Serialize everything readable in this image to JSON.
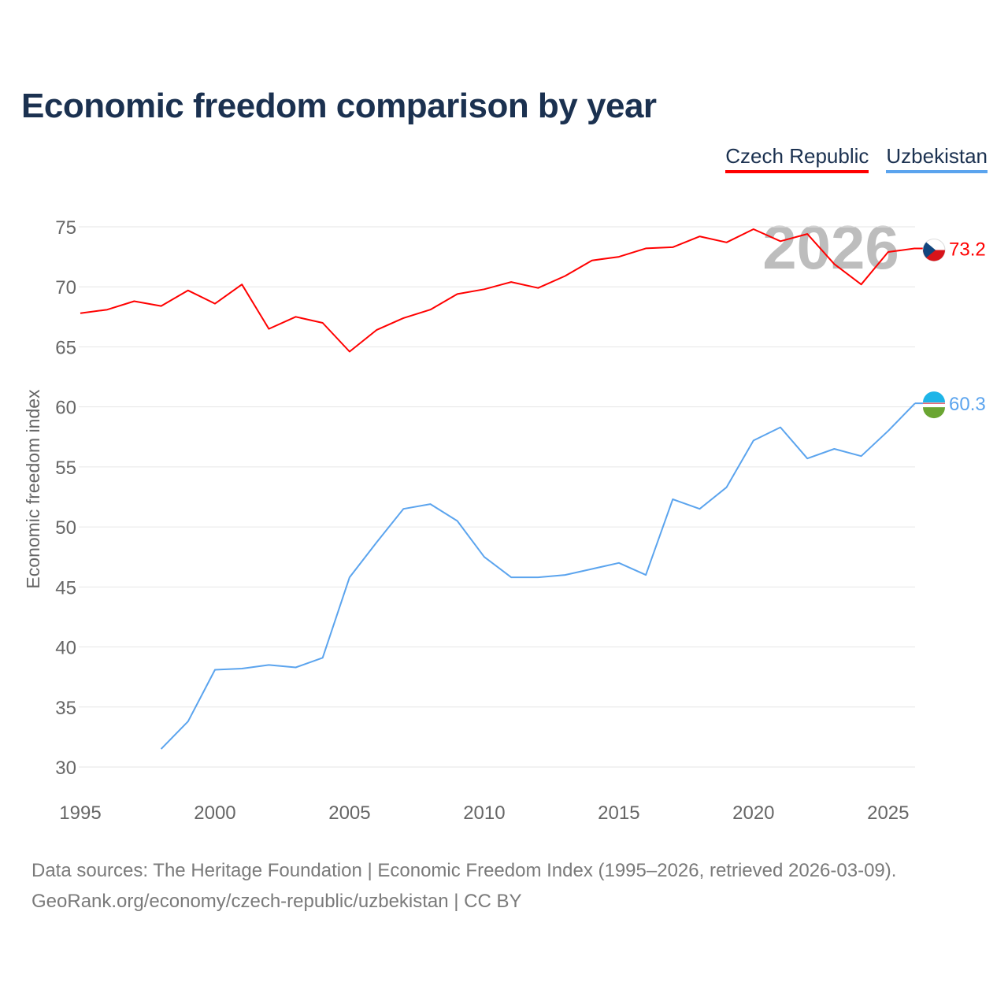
{
  "chart_data": {
    "type": "line",
    "title": "Economic freedom comparison by year",
    "xlabel": "",
    "ylabel": "Economic freedom index",
    "xlim": [
      1995,
      2026
    ],
    "ylim": [
      30,
      75
    ],
    "x_ticks": [
      1995,
      2000,
      2005,
      2010,
      2015,
      2020,
      2025
    ],
    "y_ticks": [
      30,
      35,
      40,
      45,
      50,
      55,
      60,
      65,
      70,
      75
    ],
    "grid": true,
    "legend_position": "top-right",
    "current_year_label": "2026",
    "series": [
      {
        "name": "Czech Republic",
        "color": "#ff0000",
        "end_label": "73.2",
        "x": [
          1995,
          1996,
          1997,
          1998,
          1999,
          2000,
          2001,
          2002,
          2003,
          2004,
          2005,
          2006,
          2007,
          2008,
          2009,
          2010,
          2011,
          2012,
          2013,
          2014,
          2015,
          2016,
          2017,
          2018,
          2019,
          2020,
          2021,
          2022,
          2023,
          2024,
          2025,
          2026
        ],
        "values": [
          67.8,
          68.1,
          68.8,
          68.4,
          69.7,
          68.6,
          70.2,
          66.5,
          67.5,
          67.0,
          64.6,
          66.4,
          67.4,
          68.1,
          69.4,
          69.8,
          70.4,
          69.9,
          70.9,
          72.2,
          72.5,
          73.2,
          73.3,
          74.2,
          73.7,
          74.8,
          73.8,
          74.4,
          71.9,
          70.2,
          72.9,
          73.2
        ]
      },
      {
        "name": "Uzbekistan",
        "color": "#5ba4ee",
        "end_label": "60.3",
        "x": [
          1998,
          1999,
          2000,
          2001,
          2002,
          2003,
          2004,
          2005,
          2006,
          2007,
          2008,
          2009,
          2010,
          2011,
          2012,
          2013,
          2014,
          2015,
          2016,
          2017,
          2018,
          2019,
          2020,
          2021,
          2022,
          2023,
          2024,
          2025,
          2026
        ],
        "values": [
          31.5,
          33.8,
          38.1,
          38.2,
          38.5,
          38.3,
          39.1,
          45.8,
          48.7,
          51.5,
          51.9,
          50.5,
          47.5,
          45.8,
          45.8,
          46.0,
          46.5,
          47.0,
          46.0,
          52.3,
          51.5,
          53.3,
          57.2,
          58.3,
          55.7,
          56.5,
          55.9,
          58.0,
          60.3
        ]
      }
    ]
  },
  "footer": {
    "line1": "Data sources: The Heritage Foundation | Economic Freedom Index (1995–2026, retrieved 2026-03-09).",
    "line2": "GeoRank.org/economy/czech-republic/uzbekistan | CC BY"
  }
}
